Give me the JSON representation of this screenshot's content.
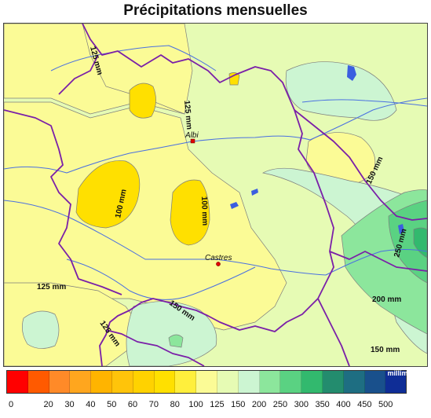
{
  "title": "Précipitations mensuelles",
  "map": {
    "contour_labels": [
      "125 mm",
      "125 mm",
      "100 mm",
      "100 mm",
      "150 mm",
      "250 mm",
      "200 mm",
      "125 mm",
      "150 mm",
      "125 mm",
      "150 mm"
    ],
    "cities": [
      {
        "name": "Albi"
      },
      {
        "name": "Castres"
      }
    ],
    "city_marker_color": "#e00000",
    "border_color": "#7a1fa8",
    "river_color": "#4a70e0",
    "lake_color": "#3b5ee0"
  },
  "legend": {
    "unit": "millimètres",
    "ticks": [
      "0",
      "20",
      "30",
      "40",
      "50",
      "60",
      "70",
      "80",
      "100",
      "125",
      "150",
      "200",
      "250",
      "300",
      "350",
      "400",
      "450",
      "500"
    ],
    "colors": [
      "#ff0000",
      "#ff5a00",
      "#ff8a28",
      "#ffa61e",
      "#ffb400",
      "#ffc40a",
      "#ffd200",
      "#ffe000",
      "#ffef3c",
      "#fbfb96",
      "#e6fbb4",
      "#ccf5d2",
      "#8ce69c",
      "#5ad282",
      "#32b96e",
      "#238c6e",
      "#1e6e82",
      "#19508c",
      "#0f2d96"
    ]
  }
}
